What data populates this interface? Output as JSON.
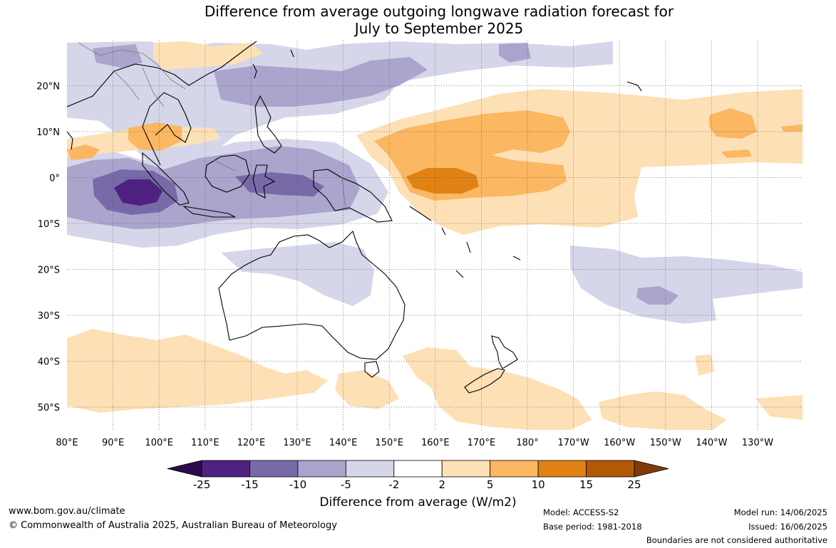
{
  "title": {
    "line1": "Difference from average outgoing longwave radiation forecast for",
    "line2": "July to September 2025"
  },
  "axes": {
    "latitude_labels": [
      "20°N",
      "10°N",
      "0°",
      "10°S",
      "20°S",
      "30°S",
      "40°S",
      "50°S"
    ],
    "longitude_labels": [
      "80°E",
      "90°E",
      "100°E",
      "110°E",
      "120°E",
      "130°E",
      "140°E",
      "150°E",
      "160°E",
      "170°E",
      "180°",
      "170°W",
      "160°W",
      "150°W",
      "140°W",
      "130°W"
    ]
  },
  "colorbar": {
    "title": "Difference from average (W/m2)",
    "tick_labels": [
      "-25",
      "-15",
      "-10",
      "-5",
      "-2",
      "2",
      "5",
      "10",
      "15",
      "25"
    ],
    "colors": [
      "#2e0a4e",
      "#4f2180",
      "#786aa8",
      "#aba4cc",
      "#d6d6ea",
      "#ffffff",
      "#fde0b6",
      "#fbb761",
      "#e08214",
      "#b35806",
      "#7f3b08"
    ]
  },
  "footer": {
    "website": "www.bom.gov.au/climate",
    "copyright": "© Commonwealth of Australia 2025, Australian Bureau of Meteorology",
    "model": "Model: ACCESS-S2",
    "base_period": "Base period: 1981-2018",
    "model_run": "Model run: 14/06/2025",
    "issued": "Issued: 16/06/2025",
    "disclaimer": "Boundaries are not considered authoritative"
  }
}
